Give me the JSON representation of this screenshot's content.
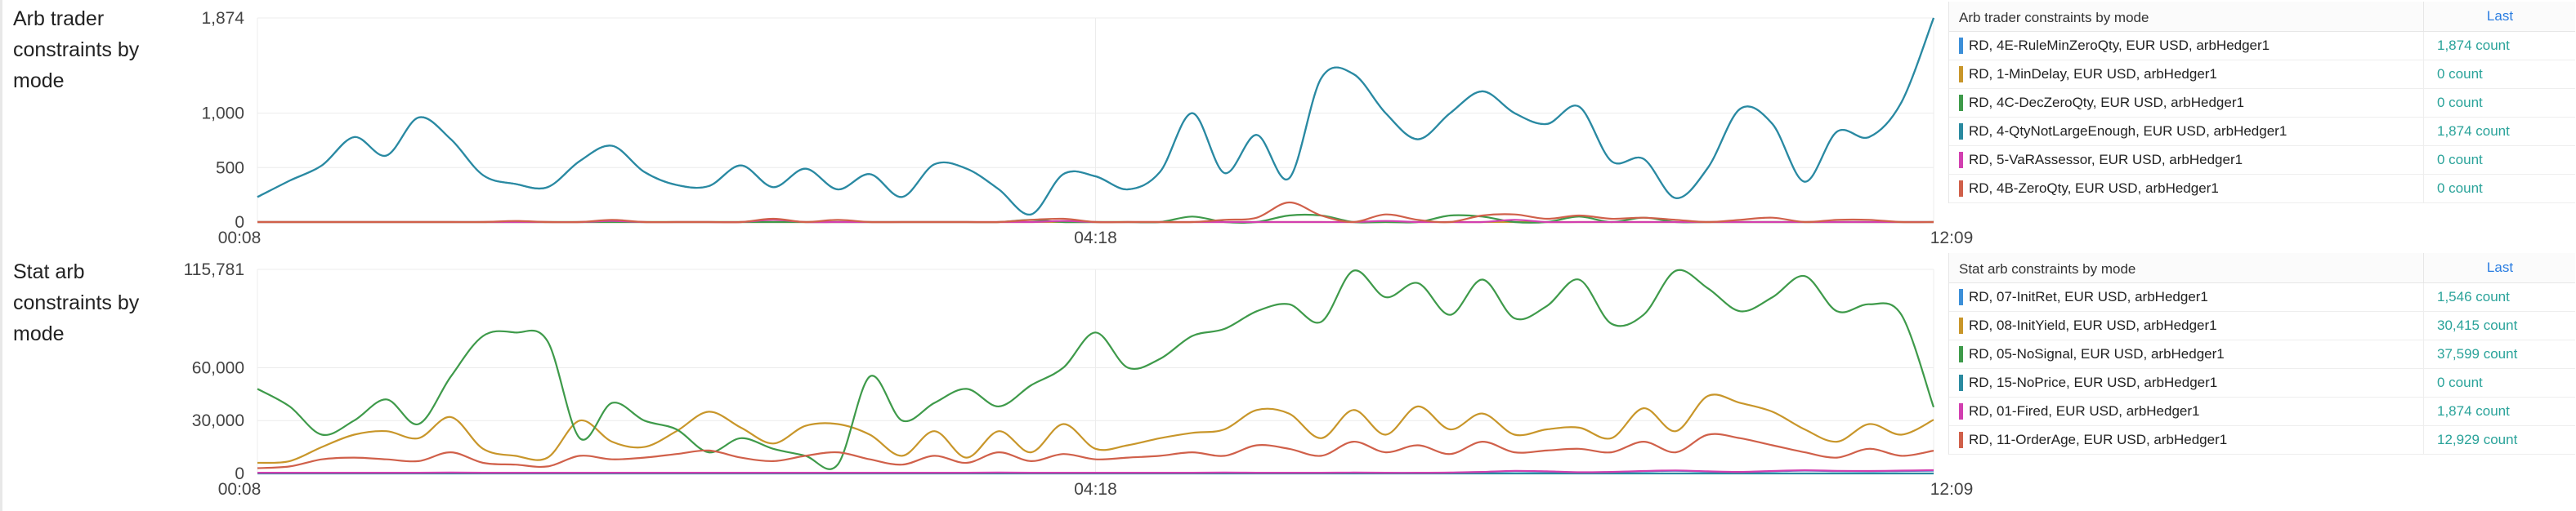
{
  "panels": [
    {
      "title": "Arb trader constraints by mode",
      "legend_title": "Arb trader constraints by mode",
      "legend_col": "Last",
      "legend": [
        {
          "name": "RD, 4E-RuleMinZeroQty, EUR USD, arbHedger1",
          "value": "1,874 count",
          "color": "#3c8fd8"
        },
        {
          "name": "RD, 1-MinDelay, EUR USD, arbHedger1",
          "value": "0 count",
          "color": "#c8962a"
        },
        {
          "name": "RD, 4C-DecZeroQty, EUR USD, arbHedger1",
          "value": "0 count",
          "color": "#3e9a4a"
        },
        {
          "name": "RD, 4-QtyNotLargeEnough, EUR USD, arbHedger1",
          "value": "1,874 count",
          "color": "#2a8aa0"
        },
        {
          "name": "RD, 5-VaRAssessor, EUR USD, arbHedger1",
          "value": "0 count",
          "color": "#d23fb0"
        },
        {
          "name": "RD, 4B-ZeroQty, EUR USD, arbHedger1",
          "value": "0 count",
          "color": "#d0604a"
        }
      ]
    },
    {
      "title": "Stat arb constraints by mode",
      "legend_title": "Stat arb constraints by mode",
      "legend_col": "Last",
      "legend": [
        {
          "name": "RD, 07-InitRet, EUR USD, arbHedger1",
          "value": "1,546 count",
          "color": "#3c8fd8"
        },
        {
          "name": "RD, 08-InitYield, EUR USD, arbHedger1",
          "value": "30,415 count",
          "color": "#c8962a"
        },
        {
          "name": "RD, 05-NoSignal, EUR USD, arbHedger1",
          "value": "37,599 count",
          "color": "#3e9a4a"
        },
        {
          "name": "RD, 15-NoPrice, EUR USD, arbHedger1",
          "value": "0 count",
          "color": "#2a8aa0"
        },
        {
          "name": "RD, 01-Fired, EUR USD, arbHedger1",
          "value": "1,874 count",
          "color": "#d23fb0"
        },
        {
          "name": "RD, 11-OrderAge, EUR USD, arbHedger1",
          "value": "12,929 count",
          "color": "#d0604a"
        }
      ]
    }
  ],
  "chart_data": [
    {
      "type": "line",
      "title": "Arb trader constraints by mode",
      "x_ticks": [
        "00:08",
        "04:18",
        "12:09"
      ],
      "y_ticks": [
        "0",
        "500",
        "1,000",
        "1,874"
      ],
      "ylim": [
        0,
        1874
      ],
      "grid": true,
      "series": [
        {
          "name": "RD, 4E-RuleMinZeroQty, EUR USD, arbHedger1",
          "color": "#3c8fd8",
          "values": [
            230,
            380,
            520,
            780,
            610,
            960,
            760,
            430,
            350,
            320,
            560,
            700,
            460,
            340,
            330,
            520,
            320,
            490,
            300,
            440,
            230,
            530,
            490,
            300,
            70,
            440,
            420,
            300,
            460,
            1000,
            450,
            800,
            400,
            1320,
            1360,
            1000,
            760,
            1000,
            1200,
            1000,
            900,
            1060,
            560,
            580,
            220,
            500,
            1040,
            900,
            370,
            830,
            780,
            1100,
            1874
          ]
        },
        {
          "name": "RD, 1-MinDelay, EUR USD, arbHedger1",
          "color": "#c8962a",
          "values": [
            0,
            0,
            0,
            0,
            0,
            0,
            0,
            0,
            0,
            0,
            0,
            0,
            0,
            0,
            0,
            0,
            0,
            0,
            0,
            0,
            0,
            0,
            0,
            0,
            0,
            0,
            0,
            0,
            0,
            0,
            0,
            0,
            0,
            0,
            0,
            0,
            0,
            0,
            0,
            0,
            0,
            0,
            0,
            0,
            0,
            0,
            0,
            0,
            0,
            0,
            0,
            0,
            0
          ]
        },
        {
          "name": "RD, 4C-DecZeroQty, EUR USD, arbHedger1",
          "color": "#3e9a4a",
          "values": [
            0,
            0,
            0,
            0,
            0,
            0,
            0,
            0,
            0,
            0,
            0,
            0,
            0,
            0,
            0,
            0,
            0,
            0,
            0,
            0,
            0,
            0,
            0,
            0,
            20,
            0,
            0,
            0,
            0,
            50,
            0,
            0,
            60,
            60,
            0,
            0,
            0,
            60,
            50,
            0,
            0,
            50,
            0,
            40,
            0,
            0,
            0,
            0,
            0,
            0,
            0,
            0,
            0
          ]
        },
        {
          "name": "RD, 4-QtyNotLargeEnough, EUR USD, arbHedger1",
          "color": "#2a8aa0",
          "values": [
            230,
            380,
            520,
            780,
            610,
            960,
            760,
            430,
            350,
            320,
            560,
            700,
            460,
            340,
            330,
            520,
            320,
            490,
            300,
            440,
            230,
            530,
            490,
            300,
            70,
            440,
            420,
            300,
            460,
            1000,
            450,
            800,
            400,
            1320,
            1360,
            1000,
            760,
            1000,
            1200,
            1000,
            900,
            1060,
            560,
            580,
            220,
            500,
            1040,
            900,
            370,
            830,
            780,
            1100,
            1874
          ]
        },
        {
          "name": "RD, 5-VaRAssessor, EUR USD, arbHedger1",
          "color": "#d23fb0",
          "values": [
            0,
            0,
            0,
            0,
            0,
            0,
            0,
            0,
            0,
            0,
            0,
            10,
            0,
            0,
            0,
            0,
            20,
            0,
            0,
            0,
            0,
            0,
            0,
            0,
            0,
            10,
            0,
            0,
            0,
            0,
            0,
            0,
            0,
            0,
            0,
            10,
            0,
            0,
            0,
            20,
            0,
            0,
            0,
            0,
            0,
            0,
            0,
            0,
            0,
            0,
            0,
            0,
            0
          ]
        },
        {
          "name": "RD, 4B-ZeroQty, EUR USD, arbHedger1",
          "color": "#d0604a",
          "values": [
            0,
            0,
            0,
            0,
            0,
            0,
            0,
            0,
            10,
            0,
            0,
            20,
            0,
            0,
            0,
            0,
            30,
            0,
            20,
            0,
            0,
            0,
            0,
            0,
            20,
            30,
            0,
            0,
            0,
            0,
            20,
            40,
            180,
            60,
            0,
            70,
            20,
            0,
            60,
            70,
            30,
            60,
            30,
            40,
            20,
            0,
            20,
            40,
            0,
            20,
            20,
            0,
            0
          ]
        }
      ]
    },
    {
      "type": "line",
      "title": "Stat arb constraints by mode",
      "x_ticks": [
        "00:08",
        "04:18",
        "12:09"
      ],
      "y_ticks": [
        "0",
        "30,000",
        "60,000",
        "115,781"
      ],
      "ylim": [
        0,
        115781
      ],
      "grid": true,
      "series": [
        {
          "name": "RD, 07-InitRet, EUR USD, arbHedger1",
          "color": "#3c8fd8",
          "values": [
            300,
            300,
            300,
            350,
            300,
            300,
            400,
            300,
            300,
            300,
            300,
            300,
            300,
            300,
            300,
            300,
            300,
            300,
            300,
            300,
            300,
            300,
            300,
            400,
            300,
            300,
            300,
            300,
            300,
            300,
            400,
            300,
            300,
            300,
            400,
            300,
            300,
            400,
            800,
            1300,
            1000,
            600,
            800,
            1200,
            1500,
            1000,
            800,
            1200,
            1600,
            1300,
            1200,
            1400,
            1546
          ]
        },
        {
          "name": "RD, 08-InitYield, EUR USD, arbHedger1",
          "color": "#c8962a",
          "values": [
            6000,
            7000,
            15000,
            22000,
            24000,
            20000,
            32000,
            14000,
            10000,
            9000,
            30000,
            18000,
            15000,
            24000,
            35000,
            26000,
            17000,
            27000,
            28000,
            22000,
            10000,
            24000,
            9000,
            24000,
            12000,
            28000,
            14000,
            16000,
            20000,
            23000,
            25000,
            36000,
            34000,
            20000,
            36000,
            22000,
            38000,
            25000,
            34000,
            22000,
            25000,
            26000,
            20000,
            37000,
            24000,
            44000,
            40000,
            35000,
            25000,
            18000,
            28000,
            22000,
            30415
          ]
        },
        {
          "name": "RD, 05-NoSignal, EUR USD, arbHedger1",
          "color": "#3e9a4a",
          "values": [
            48000,
            38000,
            22000,
            30000,
            42000,
            28000,
            55000,
            78000,
            80000,
            75000,
            20000,
            40000,
            30000,
            25000,
            12000,
            20000,
            14000,
            10000,
            5000,
            55000,
            30000,
            40000,
            48000,
            38000,
            50000,
            60000,
            80000,
            60000,
            65000,
            78000,
            82000,
            92000,
            96000,
            86000,
            115000,
            100000,
            108000,
            90000,
            110000,
            88000,
            95000,
            110000,
            85000,
            90000,
            115000,
            105000,
            92000,
            100000,
            112000,
            92000,
            96000,
            90000,
            37599
          ]
        },
        {
          "name": "RD, 15-NoPrice, EUR USD, arbHedger1",
          "color": "#2a8aa0",
          "values": [
            0,
            0,
            0,
            0,
            0,
            0,
            0,
            0,
            0,
            0,
            0,
            0,
            0,
            0,
            0,
            0,
            0,
            0,
            0,
            0,
            0,
            0,
            0,
            0,
            0,
            0,
            0,
            0,
            0,
            0,
            0,
            0,
            0,
            0,
            0,
            0,
            0,
            0,
            0,
            0,
            0,
            0,
            0,
            0,
            0,
            0,
            0,
            0,
            0,
            0,
            0,
            0,
            0
          ]
        },
        {
          "name": "RD, 01-Fired, EUR USD, arbHedger1",
          "color": "#d23fb0",
          "values": [
            400,
            400,
            400,
            400,
            400,
            400,
            500,
            400,
            400,
            400,
            400,
            400,
            400,
            400,
            400,
            400,
            400,
            400,
            400,
            400,
            400,
            400,
            400,
            500,
            400,
            400,
            400,
            400,
            400,
            400,
            500,
            400,
            400,
            400,
            500,
            400,
            400,
            500,
            900,
            1500,
            1200,
            700,
            900,
            1400,
            1700,
            1200,
            900,
            1400,
            1800,
            1500,
            1400,
            1600,
            1874
          ]
        },
        {
          "name": "RD, 11-OrderAge, EUR USD, arbHedger1",
          "color": "#d0604a",
          "values": [
            3000,
            4000,
            8000,
            9000,
            8000,
            7000,
            12000,
            6000,
            5000,
            4000,
            10000,
            8000,
            9000,
            11000,
            13000,
            9000,
            7000,
            10000,
            12000,
            8000,
            5000,
            10000,
            6000,
            12000,
            7000,
            11000,
            8000,
            9000,
            10000,
            12000,
            10000,
            16000,
            14000,
            10000,
            18000,
            12000,
            16000,
            11000,
            18000,
            12000,
            13000,
            14000,
            12000,
            18000,
            12000,
            22000,
            20000,
            16000,
            12000,
            9000,
            14000,
            10000,
            12929
          ]
        }
      ]
    }
  ]
}
